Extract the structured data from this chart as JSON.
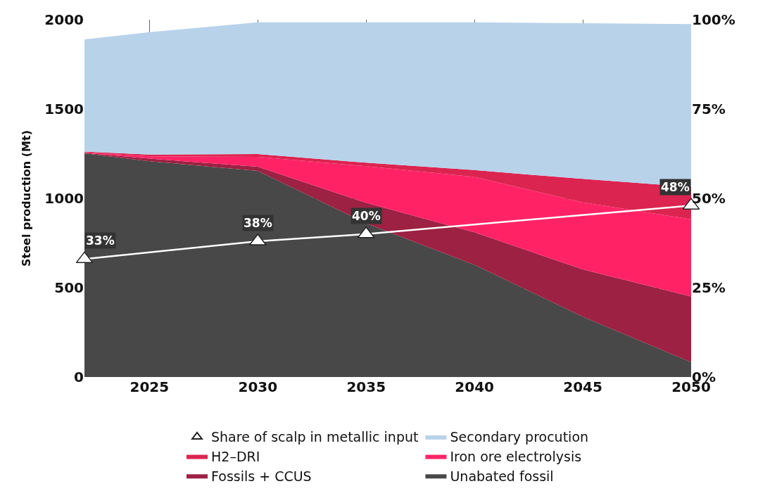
{
  "chart_data": {
    "type": "area",
    "stacked": true,
    "ylabel": "Steel production (Mt)",
    "x": [
      2022,
      2025,
      2030,
      2035,
      2040,
      2045,
      2050
    ],
    "xlim": [
      2022,
      2050
    ],
    "xticks": [
      2025,
      2030,
      2035,
      2040,
      2045,
      2050
    ],
    "ylim": [
      0,
      2000
    ],
    "yticks": [
      0,
      500,
      1000,
      1500,
      2000
    ],
    "y2lim": [
      0,
      100
    ],
    "y2ticks": [
      {
        "value": 0,
        "label": "0%"
      },
      {
        "value": 25,
        "label": "25%"
      },
      {
        "value": 50,
        "label": "50%"
      },
      {
        "value": 75,
        "label": "75%"
      },
      {
        "value": 100,
        "label": "100%"
      }
    ],
    "grid": true,
    "legend": "bottom",
    "series": [
      {
        "name": "Unabated fossil",
        "color": "#484848",
        "values": [
          1252,
          1208,
          1154,
          860,
          628,
          338,
          83
        ]
      },
      {
        "name": "Fossils + CCUS",
        "color": "#9c2142",
        "values": [
          3,
          14,
          23,
          115,
          182,
          264,
          368
        ]
      },
      {
        "name": "Iron ore electrolysis",
        "color": "#ff2366",
        "values": [
          3,
          13,
          55,
          205,
          310,
          375,
          432
        ]
      },
      {
        "name": "H2–DRI",
        "color": "#dc2450",
        "values": [
          4,
          10,
          16,
          20,
          38,
          132,
          181
        ]
      },
      {
        "name": "Secondary procution",
        "color": "#b8d2ea",
        "values": [
          628,
          685,
          737,
          785,
          827,
          871,
          911
        ]
      },
      {
        "name": "Share of scalp in metallic input",
        "type": "line",
        "axis": "y2",
        "color": "#ffffff",
        "marker": "triangle",
        "x": [
          2022,
          2030,
          2035,
          2050
        ],
        "values": [
          33,
          38,
          40,
          48
        ],
        "value_labels": [
          "33%",
          "38%",
          "40%",
          "48%"
        ]
      }
    ]
  }
}
